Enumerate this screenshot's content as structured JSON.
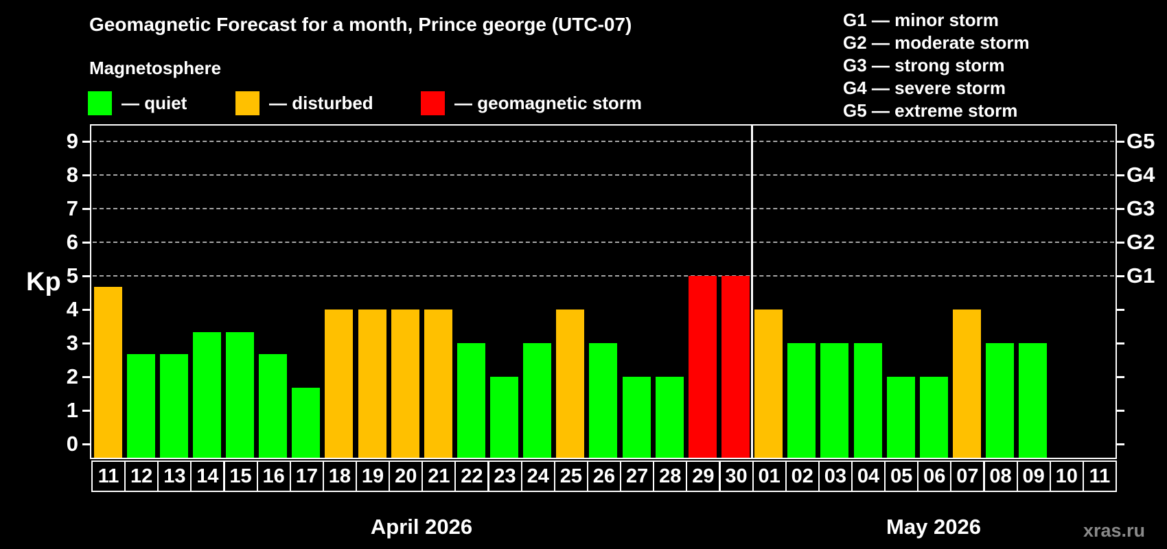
{
  "header": {
    "title": "Geomagnetic Forecast for a month, Prince george (UTC-07)",
    "subtitle": "Magnetosphere"
  },
  "legend": {
    "items": [
      {
        "status": "quiet",
        "label": "— quiet",
        "color": "#00ff00"
      },
      {
        "status": "disturbed",
        "label": "— disturbed",
        "color": "#ffc000"
      },
      {
        "status": "storm",
        "label": "— geomagnetic storm",
        "color": "#ff0000"
      }
    ]
  },
  "g_scale_legend": {
    "lines": [
      "G1 — minor storm",
      "G2 — moderate storm",
      "G3 — strong storm",
      "G4 — severe storm",
      "G5 — extreme storm"
    ]
  },
  "watermark": "xras.ru",
  "colors": {
    "background": "#000000",
    "axis": "#ffffff",
    "grid": "#a8a8a8",
    "quiet": "#00ff00",
    "disturbed": "#ffc000",
    "storm": "#ff0000",
    "none": "#000000"
  },
  "chart_data": {
    "type": "bar",
    "ylabel": "Kp",
    "ylim": [
      0,
      9.5
    ],
    "yticks": [
      0,
      1,
      2,
      3,
      4,
      5,
      6,
      7,
      8,
      9
    ],
    "grid_levels": [
      5,
      6,
      7,
      8,
      9
    ],
    "right_axis": [
      {
        "kp": 5,
        "label": "G1"
      },
      {
        "kp": 6,
        "label": "G2"
      },
      {
        "kp": 7,
        "label": "G3"
      },
      {
        "kp": 8,
        "label": "G4"
      },
      {
        "kp": 9,
        "label": "G5"
      }
    ],
    "months": [
      {
        "label": "April 2026",
        "points": [
          {
            "day": "11",
            "kp": 4.67,
            "status": "disturbed"
          },
          {
            "day": "12",
            "kp": 2.67,
            "status": "quiet"
          },
          {
            "day": "13",
            "kp": 2.67,
            "status": "quiet"
          },
          {
            "day": "14",
            "kp": 3.33,
            "status": "quiet"
          },
          {
            "day": "15",
            "kp": 3.33,
            "status": "quiet"
          },
          {
            "day": "16",
            "kp": 2.67,
            "status": "quiet"
          },
          {
            "day": "17",
            "kp": 1.67,
            "status": "quiet"
          },
          {
            "day": "18",
            "kp": 4,
            "status": "disturbed"
          },
          {
            "day": "19",
            "kp": 4,
            "status": "disturbed"
          },
          {
            "day": "20",
            "kp": 4,
            "status": "disturbed"
          },
          {
            "day": "21",
            "kp": 4,
            "status": "disturbed"
          },
          {
            "day": "22",
            "kp": 3,
            "status": "quiet"
          },
          {
            "day": "23",
            "kp": 2,
            "status": "quiet"
          },
          {
            "day": "24",
            "kp": 3,
            "status": "quiet"
          },
          {
            "day": "25",
            "kp": 4,
            "status": "disturbed"
          },
          {
            "day": "26",
            "kp": 3,
            "status": "quiet"
          },
          {
            "day": "27",
            "kp": 2,
            "status": "quiet"
          },
          {
            "day": "28",
            "kp": 2,
            "status": "quiet"
          },
          {
            "day": "29",
            "kp": 5,
            "status": "storm"
          },
          {
            "day": "30",
            "kp": 5,
            "status": "storm"
          }
        ]
      },
      {
        "label": "May 2026",
        "points": [
          {
            "day": "01",
            "kp": 4,
            "status": "disturbed"
          },
          {
            "day": "02",
            "kp": 3,
            "status": "quiet"
          },
          {
            "day": "03",
            "kp": 3,
            "status": "quiet"
          },
          {
            "day": "04",
            "kp": 3,
            "status": "quiet"
          },
          {
            "day": "05",
            "kp": 2,
            "status": "quiet"
          },
          {
            "day": "06",
            "kp": 2,
            "status": "quiet"
          },
          {
            "day": "07",
            "kp": 4,
            "status": "disturbed"
          },
          {
            "day": "08",
            "kp": 3,
            "status": "quiet"
          },
          {
            "day": "09",
            "kp": 3,
            "status": "quiet"
          },
          {
            "day": "10",
            "kp": 0,
            "status": "none"
          },
          {
            "day": "11",
            "kp": 0,
            "status": "none"
          }
        ]
      }
    ]
  }
}
